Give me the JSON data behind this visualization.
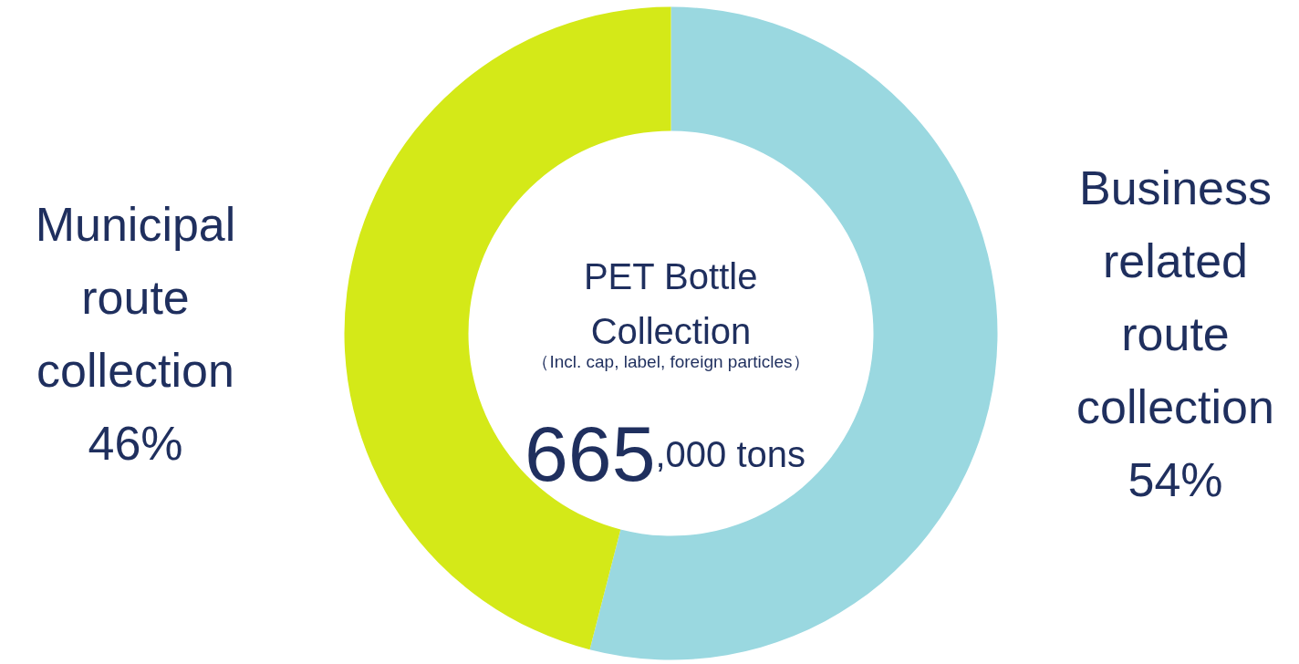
{
  "chart_data": {
    "type": "donut",
    "title": "PET Bottle Collection",
    "subtitle": "（Incl. cap, label, foreign particles）",
    "annotations": [
      "665",
      ",000 tons"
    ],
    "categories": [
      "Business related route collection",
      "Municipal route collection"
    ],
    "values": [
      54,
      46
    ],
    "colors": [
      "#9ad8e0",
      "#d4e918"
    ],
    "value_labels": [
      "54%",
      "46%"
    ]
  }
}
